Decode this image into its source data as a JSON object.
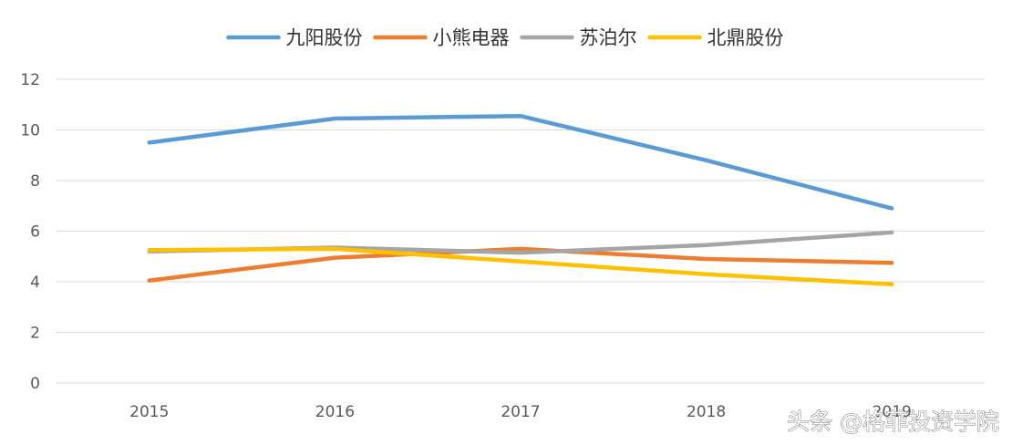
{
  "chart_data": {
    "type": "line",
    "categories": [
      "2015",
      "2016",
      "2017",
      "2018",
      "2019"
    ],
    "ylim": [
      0,
      12
    ],
    "yticks": [
      0,
      2,
      4,
      6,
      8,
      10,
      12
    ],
    "grid": "horizontal",
    "legend_position": "top",
    "series": [
      {
        "name": "九阳股份",
        "color": "#5B9BD5",
        "values": [
          9.5,
          10.45,
          10.55,
          8.8,
          6.9
        ]
      },
      {
        "name": "小熊电器",
        "color": "#ED7D31",
        "values": [
          4.05,
          4.95,
          5.3,
          4.9,
          4.75
        ]
      },
      {
        "name": "苏泊尔",
        "color": "#A5A5A5",
        "values": [
          5.2,
          5.35,
          5.15,
          5.45,
          5.95
        ]
      },
      {
        "name": "北鼎股份",
        "color": "#FFC000",
        "values": [
          5.25,
          5.3,
          4.8,
          4.3,
          3.9
        ]
      }
    ]
  },
  "watermark": {
    "text": "头条 @格菲投资学院"
  }
}
